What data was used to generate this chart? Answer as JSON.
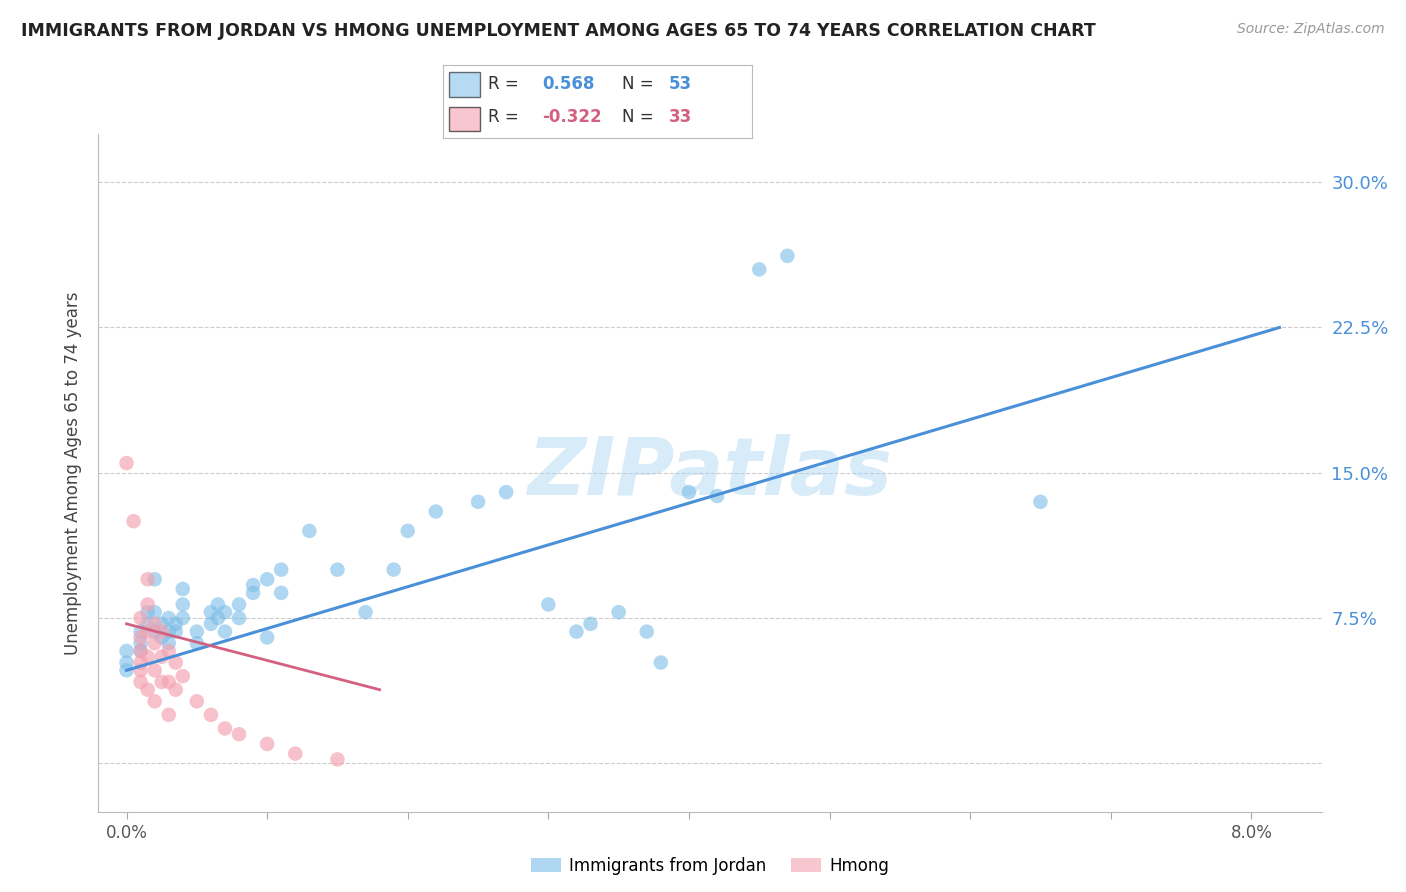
{
  "title": "IMMIGRANTS FROM JORDAN VS HMONG UNEMPLOYMENT AMONG AGES 65 TO 74 YEARS CORRELATION CHART",
  "source": "Source: ZipAtlas.com",
  "ylabel": "Unemployment Among Ages 65 to 74 years",
  "x_ticks": [
    0.0,
    0.01,
    0.02,
    0.03,
    0.04,
    0.05,
    0.06,
    0.07,
    0.08
  ],
  "x_tick_labels": [
    "0.0%",
    "",
    "",
    "",
    "",
    "",
    "",
    "",
    "8.0%"
  ],
  "y_ticks": [
    0.0,
    0.075,
    0.15,
    0.225,
    0.3
  ],
  "y_tick_labels": [
    "",
    "7.5%",
    "15.0%",
    "22.5%",
    "30.0%"
  ],
  "xlim": [
    -0.002,
    0.085
  ],
  "ylim": [
    -0.025,
    0.325
  ],
  "legend_labels": [
    "Immigrants from Jordan",
    "Hmong"
  ],
  "watermark": "ZIPatlas",
  "jordan_color": "#7bbde8",
  "hmong_color": "#f4a0b0",
  "jordan_line_color": "#4a90d9",
  "hmong_line_color": "#d46080",
  "jordan_scatter": [
    [
      0.0,
      0.048
    ],
    [
      0.0,
      0.058
    ],
    [
      0.0,
      0.052
    ],
    [
      0.001,
      0.068
    ],
    [
      0.001,
      0.062
    ],
    [
      0.001,
      0.058
    ],
    [
      0.0015,
      0.072
    ],
    [
      0.0015,
      0.078
    ],
    [
      0.002,
      0.068
    ],
    [
      0.002,
      0.078
    ],
    [
      0.002,
      0.095
    ],
    [
      0.0025,
      0.065
    ],
    [
      0.0025,
      0.072
    ],
    [
      0.003,
      0.068
    ],
    [
      0.003,
      0.062
    ],
    [
      0.003,
      0.075
    ],
    [
      0.0035,
      0.072
    ],
    [
      0.0035,
      0.068
    ],
    [
      0.004,
      0.075
    ],
    [
      0.004,
      0.082
    ],
    [
      0.004,
      0.09
    ],
    [
      0.005,
      0.068
    ],
    [
      0.005,
      0.062
    ],
    [
      0.006,
      0.078
    ],
    [
      0.006,
      0.072
    ],
    [
      0.0065,
      0.082
    ],
    [
      0.0065,
      0.075
    ],
    [
      0.007,
      0.078
    ],
    [
      0.007,
      0.068
    ],
    [
      0.008,
      0.082
    ],
    [
      0.008,
      0.075
    ],
    [
      0.009,
      0.088
    ],
    [
      0.009,
      0.092
    ],
    [
      0.01,
      0.065
    ],
    [
      0.01,
      0.095
    ],
    [
      0.011,
      0.088
    ],
    [
      0.011,
      0.1
    ],
    [
      0.013,
      0.12
    ],
    [
      0.015,
      0.1
    ],
    [
      0.017,
      0.078
    ],
    [
      0.019,
      0.1
    ],
    [
      0.02,
      0.12
    ],
    [
      0.022,
      0.13
    ],
    [
      0.025,
      0.135
    ],
    [
      0.027,
      0.14
    ],
    [
      0.03,
      0.082
    ],
    [
      0.032,
      0.068
    ],
    [
      0.033,
      0.072
    ],
    [
      0.035,
      0.078
    ],
    [
      0.037,
      0.068
    ],
    [
      0.038,
      0.052
    ],
    [
      0.04,
      0.14
    ],
    [
      0.042,
      0.138
    ],
    [
      0.045,
      0.255
    ],
    [
      0.047,
      0.262
    ],
    [
      0.065,
      0.135
    ]
  ],
  "hmong_scatter": [
    [
      0.0,
      0.155
    ],
    [
      0.0005,
      0.125
    ],
    [
      0.001,
      0.075
    ],
    [
      0.001,
      0.065
    ],
    [
      0.001,
      0.058
    ],
    [
      0.001,
      0.052
    ],
    [
      0.001,
      0.048
    ],
    [
      0.001,
      0.042
    ],
    [
      0.0015,
      0.095
    ],
    [
      0.0015,
      0.082
    ],
    [
      0.0015,
      0.068
    ],
    [
      0.0015,
      0.055
    ],
    [
      0.0015,
      0.038
    ],
    [
      0.002,
      0.072
    ],
    [
      0.002,
      0.062
    ],
    [
      0.002,
      0.048
    ],
    [
      0.002,
      0.032
    ],
    [
      0.0025,
      0.068
    ],
    [
      0.0025,
      0.055
    ],
    [
      0.0025,
      0.042
    ],
    [
      0.003,
      0.058
    ],
    [
      0.003,
      0.042
    ],
    [
      0.003,
      0.025
    ],
    [
      0.0035,
      0.052
    ],
    [
      0.0035,
      0.038
    ],
    [
      0.004,
      0.045
    ],
    [
      0.005,
      0.032
    ],
    [
      0.006,
      0.025
    ],
    [
      0.007,
      0.018
    ],
    [
      0.008,
      0.015
    ],
    [
      0.01,
      0.01
    ],
    [
      0.012,
      0.005
    ],
    [
      0.015,
      0.002
    ]
  ],
  "jordan_line_x": [
    0.0,
    0.082
  ],
  "jordan_line_y": [
    0.048,
    0.225
  ],
  "hmong_line_x": [
    0.0,
    0.018
  ],
  "hmong_line_y": [
    0.072,
    0.038
  ]
}
